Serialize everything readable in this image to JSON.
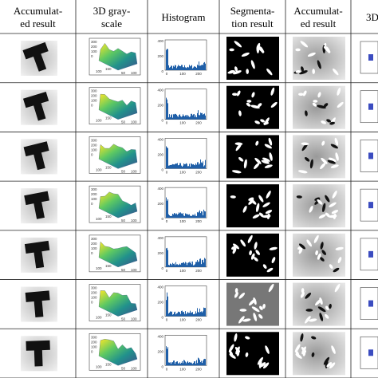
{
  "header": {
    "columns": [
      {
        "lines": [
          "Accumulat-",
          "ed result"
        ]
      },
      {
        "lines": [
          "3D gray-",
          "scale"
        ]
      },
      {
        "lines": [
          "Histogram"
        ]
      },
      {
        "lines": [
          "Segmenta-",
          "tion result"
        ]
      },
      {
        "lines": [
          "Accumulat-",
          "ed result"
        ]
      },
      {
        "lines": [
          "3D"
        ]
      }
    ]
  },
  "rows": [
    {
      "surface": {
        "zticks": [
          300,
          200,
          100,
          0
        ],
        "xticks": [
          50,
          100
        ],
        "yticks": [
          100,
          150
        ]
      },
      "histogram": {
        "yticks": [
          400,
          200,
          0
        ],
        "xticks": [
          0,
          100,
          200
        ]
      }
    },
    {
      "surface": {
        "zticks": [
          300,
          200,
          100,
          0
        ],
        "xticks": [
          50,
          100
        ],
        "yticks": [
          100,
          150
        ]
      },
      "histogram": {
        "yticks": [
          400,
          200,
          0
        ],
        "xticks": [
          0,
          100,
          200
        ]
      }
    },
    {
      "surface": {
        "zticks": [
          300,
          200,
          100,
          0
        ],
        "xticks": [
          50,
          100
        ],
        "yticks": [
          100,
          150
        ]
      },
      "histogram": {
        "yticks": [
          400,
          200,
          0
        ],
        "xticks": [
          0,
          100,
          200
        ]
      }
    },
    {
      "surface": {
        "zticks": [
          300,
          200,
          100,
          0
        ],
        "xticks": [
          50,
          100
        ],
        "yticks": [
          100,
          150
        ]
      },
      "histogram": {
        "yticks": [
          400,
          200,
          0
        ],
        "xticks": [
          0,
          100,
          200
        ]
      }
    },
    {
      "surface": {
        "zticks": [
          300,
          200,
          100,
          0
        ],
        "xticks": [
          50,
          100
        ],
        "yticks": [
          100,
          150
        ]
      },
      "histogram": {
        "yticks": [
          400,
          200,
          0
        ],
        "xticks": [
          0,
          100,
          200
        ]
      }
    },
    {
      "surface": {
        "zticks": [
          300,
          200,
          100,
          0
        ],
        "xticks": [
          50,
          100
        ],
        "yticks": [
          100,
          150
        ]
      },
      "histogram": {
        "yticks": [
          400,
          200,
          0
        ],
        "xticks": [
          0,
          100,
          200
        ]
      }
    },
    {
      "surface": {
        "zticks": [
          300,
          200,
          100,
          0
        ],
        "xticks": [
          50,
          100
        ],
        "yticks": [
          100,
          150
        ]
      },
      "histogram": {
        "yticks": [
          400,
          200,
          0
        ],
        "xticks": [
          0,
          100,
          200
        ]
      }
    }
  ]
}
